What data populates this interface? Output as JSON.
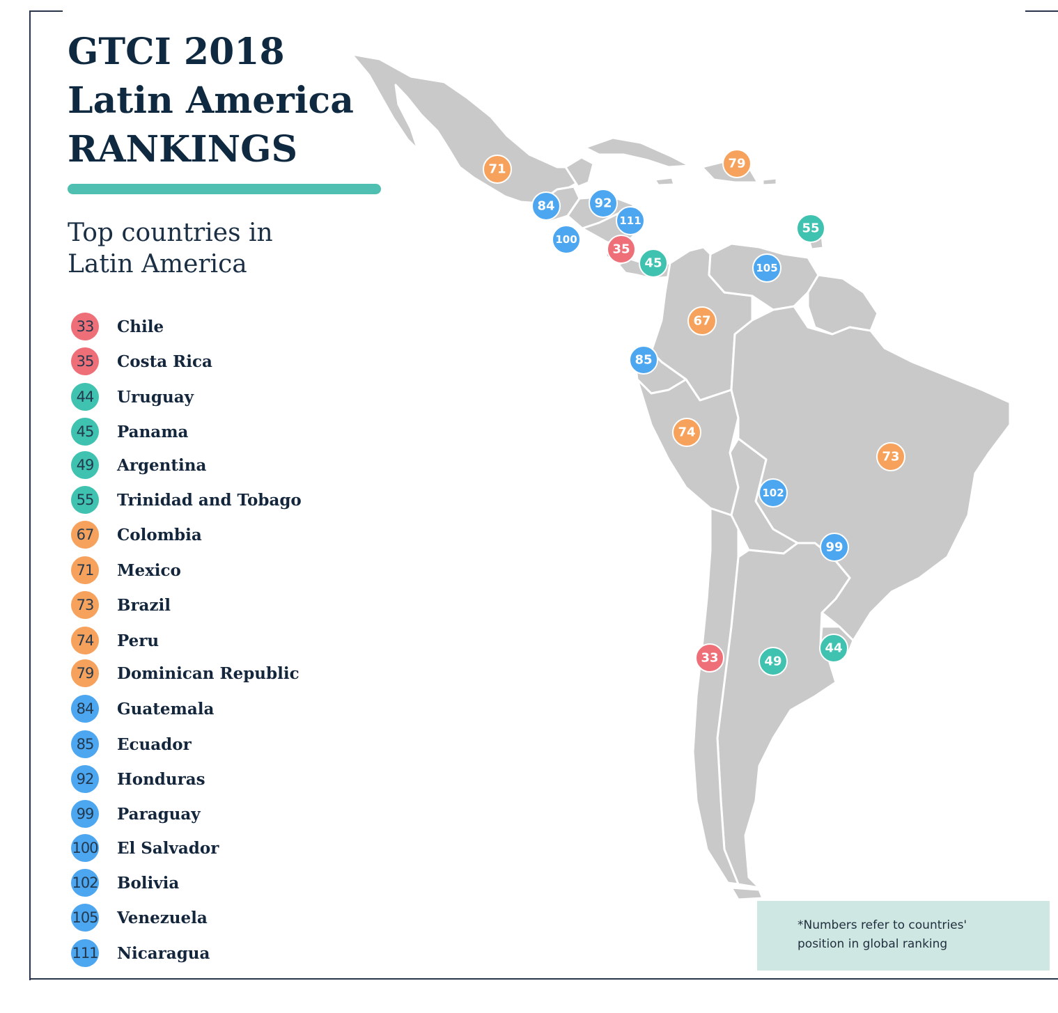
{
  "title": {
    "line1": "GTCI 2018",
    "line2": "Latin America",
    "line3": "RANKINGS"
  },
  "subtitle": {
    "line1": "Top countries in",
    "line2": "Latin America"
  },
  "colors": {
    "tier_red": "#ee6f78",
    "tier_teal": "#40c2b0",
    "tier_orange": "#f7a25c",
    "tier_blue": "#4da6f0",
    "land": "#c9c9c9",
    "border": "#ffffff",
    "accent": "#4fbfb1",
    "title": "#0f2a40",
    "note_bg": "#cfe7e2"
  },
  "legend": [
    {
      "rank": "33",
      "name": "Chile",
      "tier": "red"
    },
    {
      "rank": "35",
      "name": "Costa Rica",
      "tier": "red"
    },
    {
      "rank": "44",
      "name": "Uruguay",
      "tier": "teal"
    },
    {
      "rank": "45",
      "name": "Panama",
      "tier": "teal"
    },
    {
      "rank": "49",
      "name": "Argentina",
      "tier": "teal"
    },
    {
      "rank": "55",
      "name": "Trinidad and Tobago",
      "tier": "teal"
    },
    {
      "rank": "67",
      "name": "Colombia",
      "tier": "orange"
    },
    {
      "rank": "71",
      "name": "Mexico",
      "tier": "orange"
    },
    {
      "rank": "73",
      "name": "Brazil",
      "tier": "orange"
    },
    {
      "rank": "74",
      "name": "Peru",
      "tier": "orange"
    },
    {
      "rank": "79",
      "name": "Dominican Republic",
      "tier": "orange"
    },
    {
      "rank": "84",
      "name": "Guatemala",
      "tier": "blue"
    },
    {
      "rank": "85",
      "name": "Ecuador",
      "tier": "blue"
    },
    {
      "rank": "92",
      "name": "Honduras",
      "tier": "blue"
    },
    {
      "rank": "99",
      "name": "Paraguay",
      "tier": "blue"
    },
    {
      "rank": "100",
      "name": "El Salvador",
      "tier": "blue"
    },
    {
      "rank": "102",
      "name": "Bolivia",
      "tier": "blue"
    },
    {
      "rank": "105",
      "name": "Venezuela",
      "tier": "blue"
    },
    {
      "rank": "111",
      "name": "Nicaragua",
      "tier": "blue"
    }
  ],
  "map_markers": [
    {
      "rank": "71",
      "country": "Mexico",
      "tier": "orange"
    },
    {
      "rank": "79",
      "country": "Dominican Republic",
      "tier": "orange"
    },
    {
      "rank": "84",
      "country": "Guatemala",
      "tier": "blue"
    },
    {
      "rank": "92",
      "country": "Honduras",
      "tier": "blue"
    },
    {
      "rank": "111",
      "country": "Nicaragua",
      "tier": "blue"
    },
    {
      "rank": "100",
      "country": "El Salvador",
      "tier": "blue"
    },
    {
      "rank": "35",
      "country": "Costa Rica",
      "tier": "red"
    },
    {
      "rank": "45",
      "country": "Panama",
      "tier": "teal"
    },
    {
      "rank": "55",
      "country": "Trinidad and Tobago",
      "tier": "teal"
    },
    {
      "rank": "105",
      "country": "Venezuela",
      "tier": "blue"
    },
    {
      "rank": "67",
      "country": "Colombia",
      "tier": "orange"
    },
    {
      "rank": "85",
      "country": "Ecuador",
      "tier": "blue"
    },
    {
      "rank": "74",
      "country": "Peru",
      "tier": "orange"
    },
    {
      "rank": "73",
      "country": "Brazil",
      "tier": "orange"
    },
    {
      "rank": "102",
      "country": "Bolivia",
      "tier": "blue"
    },
    {
      "rank": "99",
      "country": "Paraguay",
      "tier": "blue"
    },
    {
      "rank": "44",
      "country": "Uruguay",
      "tier": "teal"
    },
    {
      "rank": "33",
      "country": "Chile",
      "tier": "red"
    },
    {
      "rank": "49",
      "country": "Argentina",
      "tier": "teal"
    }
  ],
  "note": {
    "line1": "*Numbers refer to countries'",
    "line2": "position in global ranking"
  }
}
